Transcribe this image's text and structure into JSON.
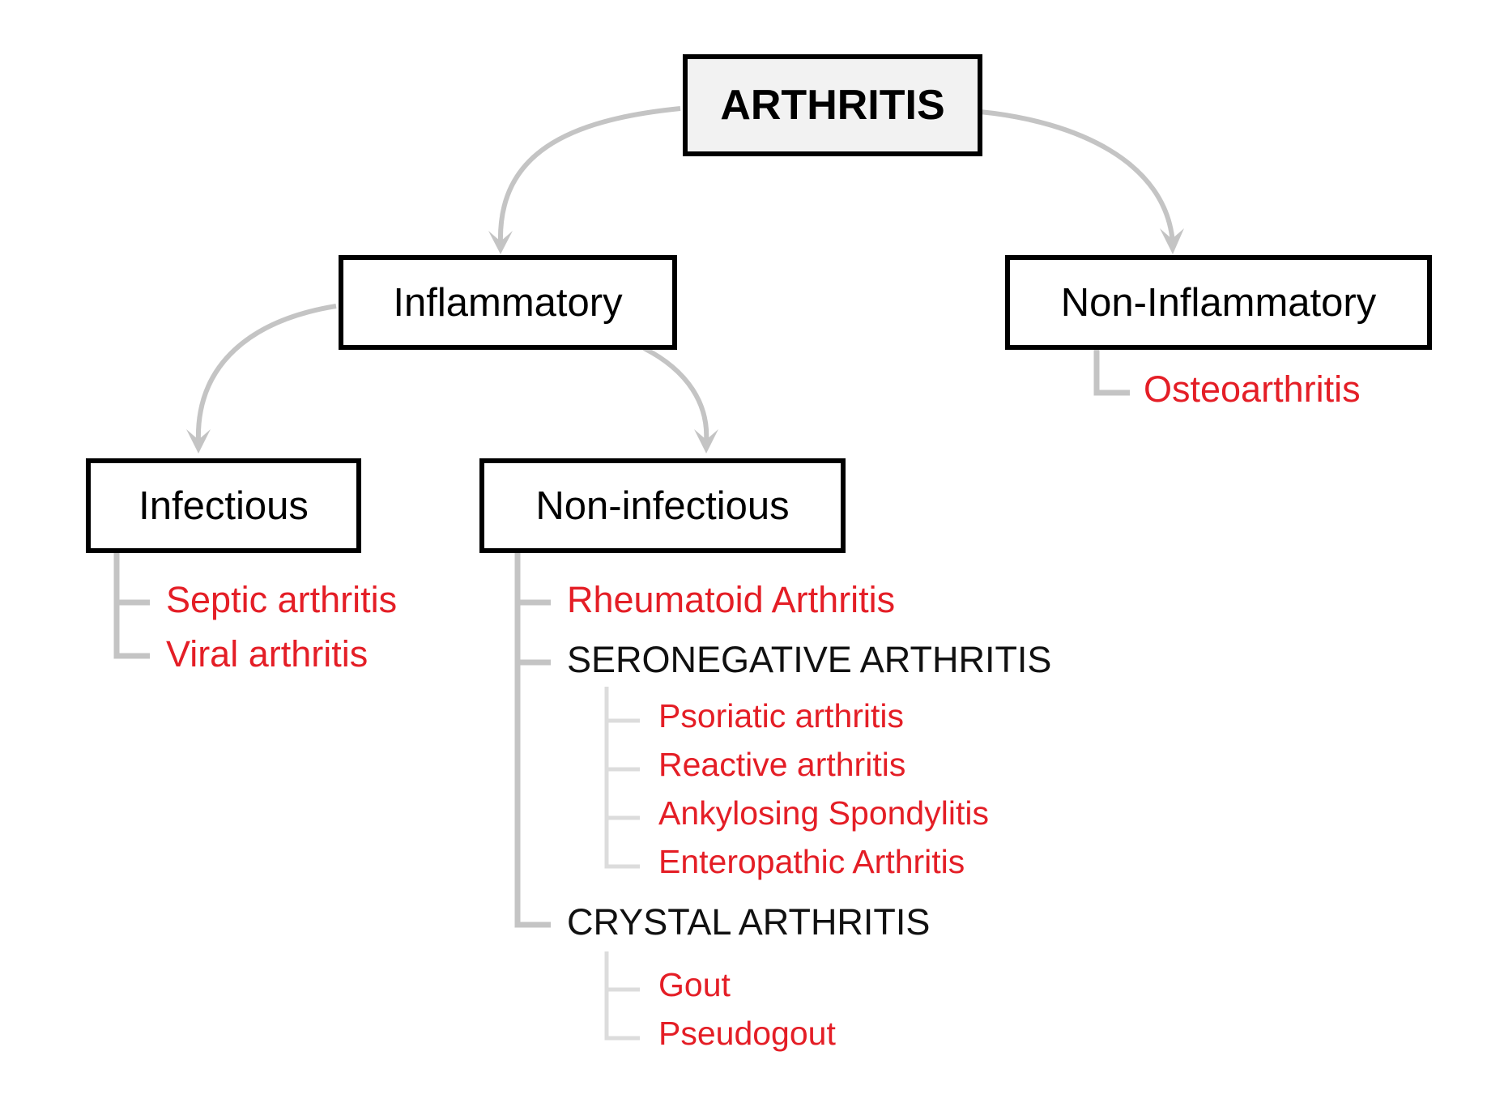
{
  "root": {
    "label": "ARTHRITIS"
  },
  "inflammatory": {
    "label": "Inflammatory",
    "infectious": {
      "label": "Infectious",
      "items": [
        "Septic arthritis",
        "Viral arthritis"
      ]
    },
    "non_infectious": {
      "label": "Non-infectious",
      "rheumatoid": "Rheumatoid Arthritis",
      "seronegative": {
        "label": "SERONEGATIVE ARTHRITIS",
        "items": [
          "Psoriatic arthritis",
          "Reactive arthritis",
          "Ankylosing Spondylitis",
          "Enteropathic Arthritis"
        ]
      },
      "crystal": {
        "label": "CRYSTAL ARTHRITIS",
        "items": [
          "Gout",
          "Pseudogout"
        ]
      }
    }
  },
  "non_inflammatory": {
    "label": "Non-Inflammatory",
    "items": [
      "Osteoarthritis"
    ]
  },
  "colors": {
    "disease_text": "#e41e26",
    "category_text": "#111111",
    "connector": "#c4c4c4",
    "box_border": "#000000",
    "root_fill": "#f2f2f2"
  }
}
